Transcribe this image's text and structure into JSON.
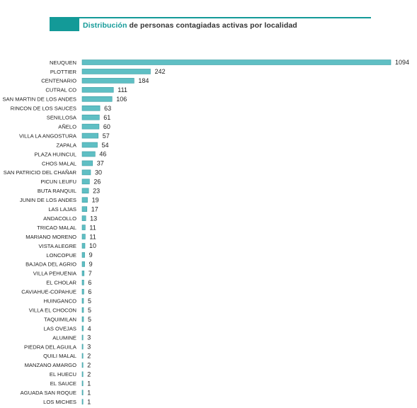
{
  "title": {
    "highlight": "Distribución",
    "rest": " de personas contagiadas activas por localidad"
  },
  "colors": {
    "accent": "#139a98",
    "bar_fill": "#5fbfc4",
    "bar_stroke": "#3a9da3"
  },
  "chart_data": {
    "type": "bar",
    "orientation": "horizontal",
    "title": "Distribución de personas contagiadas activas por localidad",
    "xlabel": "",
    "ylabel": "",
    "grid": false,
    "xlim": [
      0,
      1094
    ],
    "categories": [
      "NEUQUEN",
      "PLOTTIER",
      "CENTENARIO",
      "CUTRAL CO",
      "SAN MARTIN DE LOS ANDES",
      "RINCON DE LOS SAUCES",
      "SENILLOSA",
      "AÑELO",
      "VILLA LA ANGOSTURA",
      "ZAPALA",
      "PLAZA HUINCUL",
      "CHOS MALAL",
      "SAN PATRICIO DEL CHAÑAR",
      "PICUN LEUFU",
      "BUTA RANQUIL",
      "JUNIN DE LOS ANDES",
      "LAS LAJAS",
      "ANDACOLLO",
      "TRICAO MALAL",
      "MARIANO MORENO",
      "VISTA ALEGRE",
      "LONCOPUE",
      "BAJADA DEL AGRIO",
      "VILLA PEHUENIA",
      "EL CHOLAR",
      "CAVIAHUE-COPAHUE",
      "HUINGANCO",
      "VILLA EL CHOCON",
      "TAQUIMILAN",
      "LAS OVEJAS",
      "ALUMINE",
      "PIEDRA DEL AGUILA",
      "QUILI MALAL",
      "MANZANO AMARGO",
      "EL HUECU",
      "EL SAUCE",
      "AGUADA SAN ROQUE",
      "LOS MICHES"
    ],
    "values": [
      1094,
      242,
      184,
      111,
      106,
      63,
      61,
      60,
      57,
      54,
      46,
      37,
      30,
      26,
      23,
      19,
      17,
      13,
      11,
      11,
      10,
      9,
      9,
      7,
      6,
      6,
      5,
      5,
      5,
      4,
      3,
      3,
      2,
      2,
      2,
      1,
      1,
      1
    ]
  }
}
